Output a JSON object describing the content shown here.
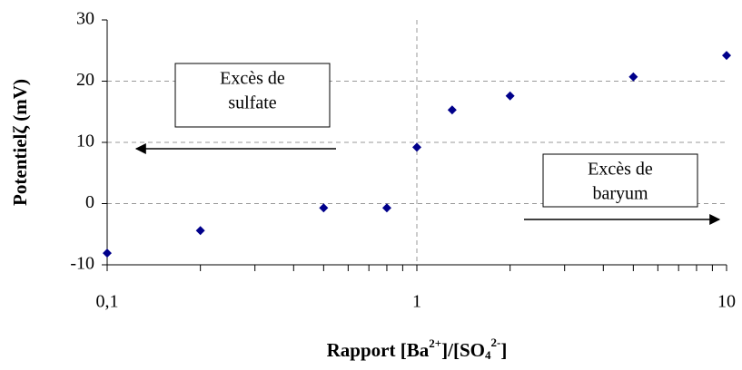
{
  "chart_data": {
    "type": "scatter",
    "x_label": [
      "Rapport [Ba",
      "2+",
      "]/[SO",
      "4",
      "2-",
      "]"
    ],
    "y_label": "Potentielζ (mV)",
    "x": [
      0.1,
      0.2,
      0.5,
      0.8,
      1,
      1.3,
      2,
      5,
      10
    ],
    "series": [
      {
        "color": "#00008b",
        "values": [
          -8.1,
          -4.4,
          -0.7,
          -0.7,
          9.2,
          15.3,
          17.6,
          20.7,
          24.2
        ]
      }
    ],
    "xlim": [
      0.1,
      10
    ],
    "xlog": true,
    "xticks": [
      {
        "value": 0.1,
        "label": "0,1"
      },
      1,
      10
    ],
    "xminorticks": [
      0.2,
      0.3,
      0.4,
      0.5,
      0.6,
      0.7,
      0.8,
      0.9,
      2,
      3,
      4,
      5,
      6,
      7,
      8,
      9
    ],
    "ylim": [
      -10,
      30
    ],
    "yticks": [
      -10,
      0,
      10,
      20,
      30
    ],
    "grid": true,
    "annotations": [
      {
        "lines": [
          "Excès de",
          "sulfate"
        ],
        "arrow": "left"
      },
      {
        "lines": [
          "Excès de",
          "baryum"
        ],
        "arrow": "right"
      }
    ]
  }
}
